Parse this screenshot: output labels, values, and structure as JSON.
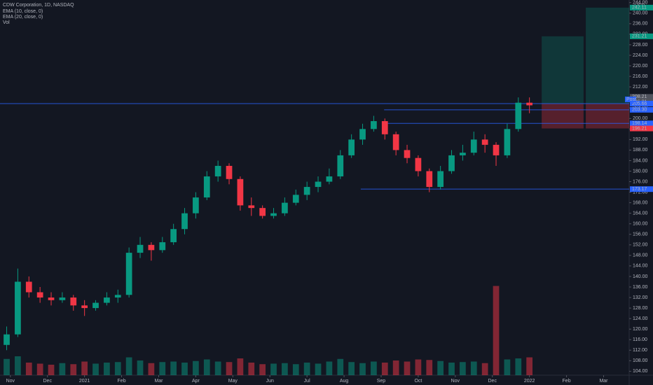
{
  "chart_data": {
    "type": "candlestick",
    "title": "CDW Corporation, 1D, NASDAQ",
    "indicators": [
      "EMA (10, close, 0)",
      "EMA (20, close, 0)",
      "Vol"
    ],
    "currency": "USD",
    "up_color": "#089981",
    "down_color": "#f23645",
    "x": [
      0.9,
      1.2,
      1.5,
      1.8,
      2.1,
      2.4,
      2.7,
      3.0,
      3.3,
      3.6,
      3.9,
      4.2,
      4.5,
      4.8,
      5.1,
      5.4,
      5.7,
      6.0,
      6.3,
      6.6,
      6.9,
      7.2,
      7.5,
      7.8,
      8.1,
      8.4,
      8.7,
      9.0,
      9.3,
      9.6,
      9.9,
      10.2,
      10.5,
      10.8,
      11.1,
      11.4,
      11.7,
      12.0,
      12.3,
      12.6,
      12.9,
      13.2,
      13.5,
      13.8,
      14.1,
      14.4,
      14.7,
      15.0
    ],
    "open": [
      114,
      118,
      138,
      134,
      132,
      131,
      132,
      129,
      128,
      130,
      132,
      133,
      149,
      152,
      150,
      153,
      158,
      164,
      170,
      178,
      182,
      177,
      167,
      166,
      163,
      164,
      168,
      171,
      174,
      176,
      178,
      186,
      192,
      196,
      199,
      194,
      188,
      185,
      180,
      174,
      180,
      186,
      187,
      192,
      190,
      186,
      196,
      206
    ],
    "high": [
      121,
      143,
      140,
      136,
      134,
      134,
      133,
      131,
      131,
      134,
      135,
      151,
      155,
      153,
      155,
      160,
      166,
      172,
      180,
      184,
      183,
      178,
      170,
      167,
      166,
      170,
      173,
      176,
      178,
      181,
      188,
      194,
      198,
      201,
      200,
      195,
      190,
      186,
      181,
      182,
      188,
      190,
      195,
      194,
      191,
      198,
      208,
      208
    ],
    "low": [
      112,
      117,
      132,
      130,
      129,
      130,
      127,
      125,
      127,
      129,
      130,
      132,
      147,
      146,
      149,
      152,
      156,
      162,
      169,
      176,
      175,
      165,
      163,
      162,
      162,
      163,
      167,
      169,
      172,
      175,
      177,
      185,
      190,
      195,
      192,
      186,
      183,
      178,
      172,
      173,
      179,
      184,
      186,
      187,
      182,
      185,
      195,
      202
    ],
    "close": [
      118,
      138,
      134,
      132,
      131,
      132,
      129,
      128,
      130,
      132,
      133,
      149,
      152,
      150,
      153,
      158,
      164,
      170,
      178,
      182,
      177,
      167,
      166,
      163,
      164,
      168,
      171,
      174,
      176,
      178,
      186,
      192,
      196,
      199,
      194,
      188,
      185,
      180,
      174,
      180,
      186,
      187,
      192,
      190,
      186,
      196,
      206,
      205
    ],
    "volume": [
      3.1,
      3.6,
      2.4,
      2.2,
      2.0,
      2.3,
      2.1,
      2.6,
      2.2,
      2.4,
      2.5,
      3.4,
      2.8,
      2.3,
      2.5,
      2.6,
      2.4,
      2.7,
      3.0,
      2.6,
      2.5,
      3.2,
      2.4,
      2.1,
      2.2,
      2.3,
      2.1,
      2.4,
      2.2,
      2.6,
      3.1,
      2.5,
      2.3,
      2.6,
      2.4,
      2.8,
      2.6,
      3.0,
      2.9,
      2.7,
      2.4,
      2.5,
      2.6,
      2.3,
      17.0,
      3.0,
      3.2,
      3.4
    ],
    "vlim": [
      0,
      20
    ],
    "xlim": [
      0.72,
      17.69
    ],
    "xticks": [
      {
        "value": 1,
        "label": "Nov"
      },
      {
        "value": 2,
        "label": "Dec"
      },
      {
        "value": 3,
        "label": "2021"
      },
      {
        "value": 4,
        "label": "Feb"
      },
      {
        "value": 5,
        "label": "Mar"
      },
      {
        "value": 6,
        "label": "Apr"
      },
      {
        "value": 7,
        "label": "May"
      },
      {
        "value": 8,
        "label": "Jun"
      },
      {
        "value": 9,
        "label": "Jul"
      },
      {
        "value": 10,
        "label": "Aug"
      },
      {
        "value": 11,
        "label": "Sep"
      },
      {
        "value": 12,
        "label": "Oct"
      },
      {
        "value": 13,
        "label": "Nov"
      },
      {
        "value": 14,
        "label": "Dec"
      },
      {
        "value": 15,
        "label": "2022"
      },
      {
        "value": 16,
        "label": "Feb"
      },
      {
        "value": 17,
        "label": "Mar"
      }
    ],
    "ylim": [
      102.5,
      245
    ],
    "yticks": [
      {
        "value": 104,
        "label": "104.00"
      },
      {
        "value": 108,
        "label": "108.00"
      },
      {
        "value": 112,
        "label": "112.00"
      },
      {
        "value": 116,
        "label": "116.00"
      },
      {
        "value": 120,
        "label": "120.00"
      },
      {
        "value": 124,
        "label": "124.00"
      },
      {
        "value": 128,
        "label": "128.00"
      },
      {
        "value": 132,
        "label": "132.00"
      },
      {
        "value": 136,
        "label": "136.00"
      },
      {
        "value": 140,
        "label": "140.00"
      },
      {
        "value": 144,
        "label": "144.00"
      },
      {
        "value": 148,
        "label": "148.00"
      },
      {
        "value": 152,
        "label": "152.00"
      },
      {
        "value": 156,
        "label": "156.00"
      },
      {
        "value": 160,
        "label": "160.00"
      },
      {
        "value": 164,
        "label": "164.00"
      },
      {
        "value": 168,
        "label": "168.00"
      },
      {
        "value": 172,
        "label": "172.00"
      },
      {
        "value": 176,
        "label": "176.00"
      },
      {
        "value": 180,
        "label": "180.00"
      },
      {
        "value": 184,
        "label": "184.00"
      },
      {
        "value": 188,
        "label": "188.00"
      },
      {
        "value": 192,
        "label": "192.00"
      },
      {
        "value": 196,
        "label": "196.00"
      },
      {
        "value": 200,
        "label": "200.00"
      },
      {
        "value": 204,
        "label": "204.00"
      },
      {
        "value": 208,
        "label": "208.00"
      },
      {
        "value": 212,
        "label": "212.00"
      },
      {
        "value": 216,
        "label": "216.00"
      },
      {
        "value": 220,
        "label": "220.00"
      },
      {
        "value": 224,
        "label": "224.00"
      },
      {
        "value": 228,
        "label": "228.00"
      },
      {
        "value": 232,
        "label": "232.00"
      },
      {
        "value": 236,
        "label": "236.00"
      },
      {
        "value": 240,
        "label": "240.00"
      },
      {
        "value": 244,
        "label": "244.00"
      }
    ],
    "levels": [
      {
        "value": 205.66,
        "from": 0.72
      },
      {
        "value": 203.3,
        "from": 11.08
      },
      {
        "value": 198.14,
        "from": 11.08
      },
      {
        "value": 173.17,
        "from": 10.45
      }
    ],
    "positions": [
      {
        "x0": 15.33,
        "x1": 16.46,
        "entry": 205.66,
        "target": 231.21,
        "stop": 196.21
      },
      {
        "x0": 16.52,
        "x1": 17.69,
        "entry": 205.66,
        "target": 242.11,
        "stop": 196.21
      }
    ],
    "tags": [
      {
        "value": 242.11,
        "color": "#089981"
      },
      {
        "value": 231.21,
        "color": "#089981"
      },
      {
        "value": 208.21,
        "color": "#50535e"
      },
      {
        "value": 206.21,
        "color": "#50535e"
      },
      {
        "value": 205.66,
        "label": "205.66",
        "color": "#2962ff"
      },
      {
        "value": 203.3,
        "label": "203.30",
        "color": "#2962ff"
      },
      {
        "value": 198.14,
        "color": "#2962ff"
      },
      {
        "value": 196.21,
        "color": "#f23645"
      },
      {
        "value": 173.17,
        "color": "#2962ff"
      }
    ],
    "session_tag": "Post"
  }
}
